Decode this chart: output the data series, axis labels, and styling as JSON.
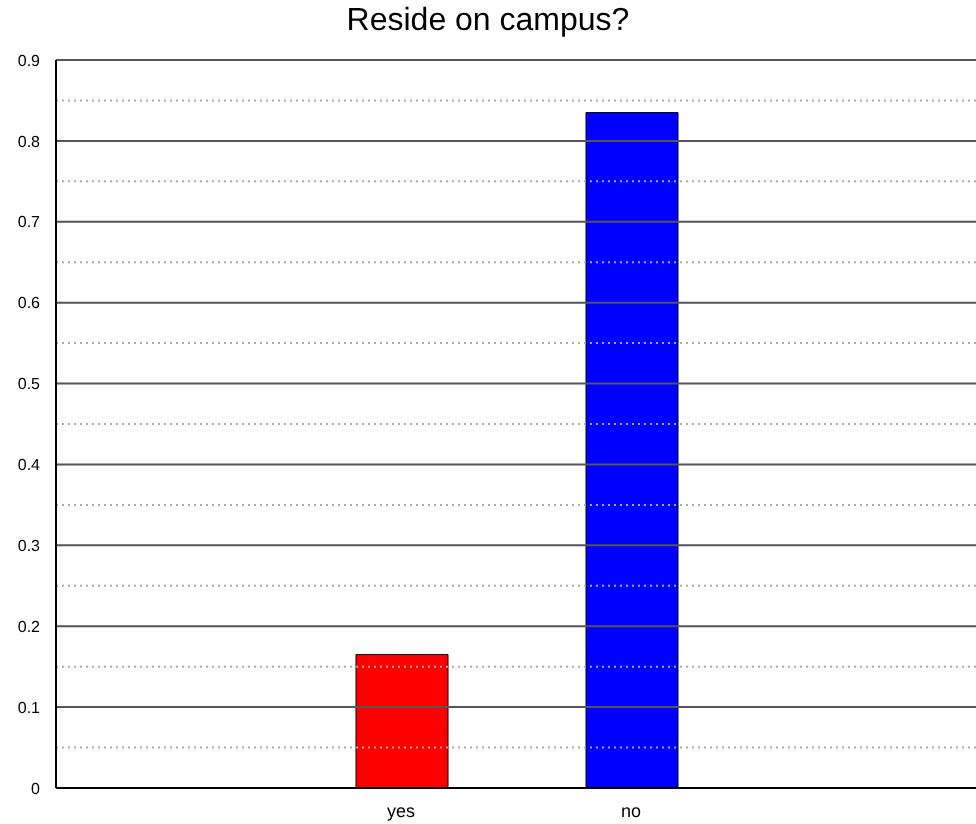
{
  "chart_data": {
    "type": "bar",
    "title": "Reside on campus?",
    "categories": [
      null,
      "yes",
      "no",
      null
    ],
    "values": [
      null,
      0.165,
      0.835,
      null
    ],
    "colors": [
      "#ff0000",
      "#ff0000",
      "#0000ff",
      "#0000ff"
    ],
    "ylim": [
      0,
      0.9
    ],
    "yticks": [
      0,
      {
        "value": 0.05,
        "label": null
      },
      0.1,
      {
        "value": 0.15,
        "label": null
      },
      0.2,
      {
        "value": 0.25,
        "label": null
      },
      0.3,
      {
        "value": 0.35,
        "label": null
      },
      0.4,
      {
        "value": 0.45,
        "label": null
      },
      0.5,
      {
        "value": 0.55,
        "label": null
      },
      0.6,
      {
        "value": 0.65,
        "label": null
      },
      0.7,
      {
        "value": 0.75,
        "label": null
      },
      0.8,
      {
        "value": 0.85,
        "label": null
      },
      0.9
    ],
    "grid": "y"
  }
}
